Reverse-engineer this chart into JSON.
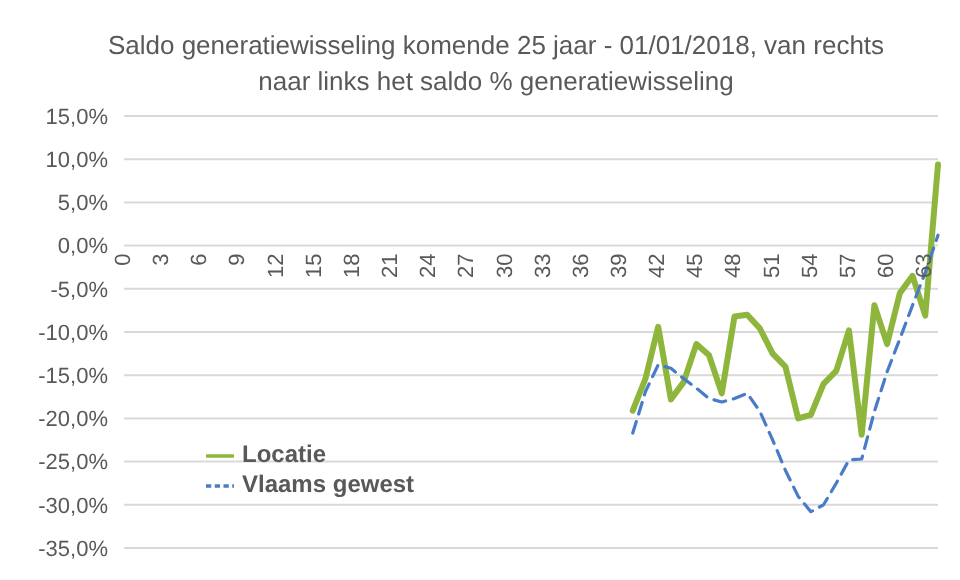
{
  "chart_data": {
    "type": "line",
    "title": "Saldo generatiewisseling komende 25 jaar - 01/01/2018, van rechts naar links  het saldo % generatiewisseling",
    "categories": [
      "0",
      null,
      null,
      "3",
      null,
      null,
      "6",
      null,
      null,
      "9",
      null,
      null,
      "12",
      null,
      null,
      "15",
      null,
      null,
      "18",
      null,
      null,
      "21",
      null,
      null,
      "24",
      null,
      null,
      "27",
      null,
      null,
      "30",
      null,
      null,
      "33",
      null,
      null,
      "36",
      null,
      null,
      "39",
      null,
      null,
      "42",
      null,
      null,
      "45",
      null,
      null,
      "48",
      null,
      null,
      "51",
      null,
      null,
      "54",
      null,
      null,
      "57",
      null,
      null,
      "60",
      null,
      null,
      "63",
      null
    ],
    "series": [
      {
        "name": "Locatie",
        "color": "#8fb63c",
        "line_style": "solid",
        "values": [
          null,
          null,
          null,
          null,
          null,
          null,
          null,
          null,
          null,
          null,
          null,
          null,
          null,
          null,
          null,
          null,
          null,
          null,
          null,
          null,
          null,
          null,
          null,
          null,
          null,
          null,
          null,
          null,
          null,
          null,
          null,
          null,
          null,
          null,
          null,
          null,
          null,
          null,
          null,
          null,
          -19.1,
          -15.4,
          -9.4,
          -17.8,
          -15.8,
          -11.4,
          -12.7,
          -17.1,
          -8.2,
          -8.0,
          -9.6,
          -12.5,
          -14.0,
          -20.0,
          -19.6,
          -16.0,
          -14.5,
          -9.8,
          -21.9,
          -6.9,
          -11.4,
          -5.5,
          -3.5,
          -8.1,
          9.4
        ]
      },
      {
        "name": "Vlaams gewest",
        "color": "#4a7bc8",
        "line_style": "dashed",
        "values": [
          null,
          null,
          null,
          null,
          null,
          null,
          null,
          null,
          null,
          null,
          null,
          null,
          null,
          null,
          null,
          null,
          null,
          null,
          null,
          null,
          null,
          null,
          null,
          null,
          null,
          null,
          null,
          null,
          null,
          null,
          null,
          null,
          null,
          null,
          null,
          null,
          null,
          null,
          null,
          null,
          -21.7,
          -16.9,
          -13.8,
          -14.2,
          -15.4,
          -16.5,
          -17.7,
          -18.1,
          -17.7,
          -17.1,
          -19.2,
          -22.5,
          -26.0,
          -29.0,
          -30.8,
          -30.0,
          -27.5,
          -24.8,
          -24.7,
          -19.2,
          -14.6,
          -10.8,
          -6.9,
          -3.1,
          1.2
        ]
      }
    ],
    "ylim": [
      -35,
      15
    ],
    "yticks": [
      {
        "value": -35,
        "label": "-35,0%"
      },
      {
        "value": -30,
        "label": "-30,0%"
      },
      {
        "value": -25,
        "label": "-25,0%"
      },
      {
        "value": -20,
        "label": "-20,0%"
      },
      {
        "value": -15,
        "label": "-15,0%"
      },
      {
        "value": -10,
        "label": "-10,0%"
      },
      {
        "value": -5,
        "label": "-5,0%"
      },
      {
        "value": 0,
        "label": "0,0%"
      },
      {
        "value": 5,
        "label": "5,0%"
      },
      {
        "value": 10,
        "label": "10,0%"
      },
      {
        "value": 15,
        "label": "15,0%"
      }
    ],
    "grid": "y",
    "legend": "bottom left",
    "marker": "none"
  }
}
